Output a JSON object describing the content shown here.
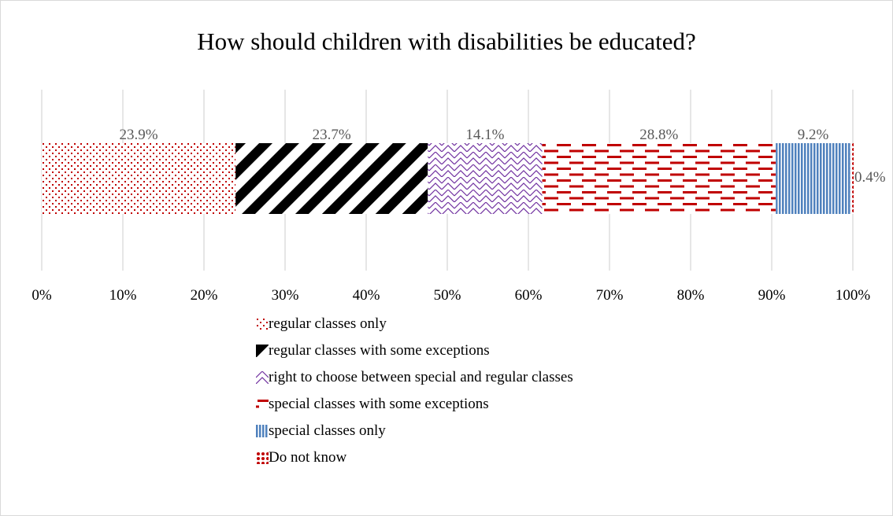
{
  "chart_data": {
    "type": "bar",
    "orientation": "horizontal-stacked-100",
    "title": "How should children with disabilities be educated?",
    "xlim": [
      0,
      100
    ],
    "xticks": [
      "0%",
      "10%",
      "20%",
      "30%",
      "40%",
      "50%",
      "60%",
      "70%",
      "80%",
      "90%",
      "100%"
    ],
    "grid": true,
    "legend_position": "bottom",
    "series": [
      {
        "name": "regular classes only",
        "value": 23.9,
        "label": "23.9%",
        "color": "#c00000",
        "pattern": "dots"
      },
      {
        "name": "regular classes with some exceptions",
        "value": 23.7,
        "label": "23.7%",
        "color": "#000000",
        "pattern": "wide-diagonal"
      },
      {
        "name": "right to choose between special and regular classes",
        "value": 14.1,
        "label": "14.1%",
        "color": "#7030a0",
        "pattern": "zigzag"
      },
      {
        "name": "special classes with some exceptions",
        "value": 28.8,
        "label": "28.8%",
        "color": "#c00000",
        "pattern": "dashed-horizontal"
      },
      {
        "name": "special classes only",
        "value": 9.2,
        "label": "9.2%",
        "color": "#4f81bd",
        "pattern": "vertical-stripes"
      },
      {
        "name": "Do not know",
        "value": 0.4,
        "label": "0.4%",
        "color": "#c00000",
        "pattern": "sphere"
      }
    ]
  }
}
